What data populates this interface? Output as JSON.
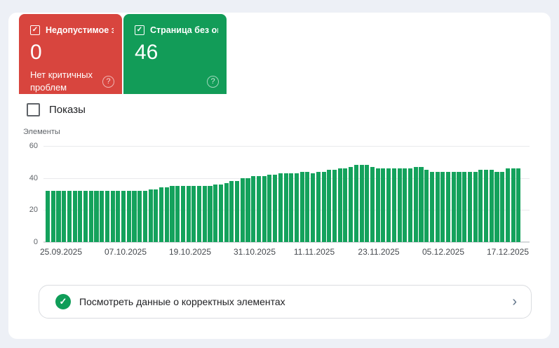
{
  "cards": [
    {
      "label": "Недопустимое з…",
      "value": "0",
      "sublabel": "Нет критичных проблем",
      "color": "#d8453e",
      "checked": true
    },
    {
      "label": "Страница без ош…",
      "value": "46",
      "sublabel": "",
      "color": "#129c58",
      "checked": true
    }
  ],
  "impressions_toggle": {
    "label": "Показы",
    "checked": false
  },
  "chart_data": {
    "type": "bar",
    "ylabel": "Элементы",
    "ylim": [
      0,
      60
    ],
    "yticks": [
      0,
      20,
      40,
      60
    ],
    "grid": true,
    "legend": "none",
    "bar_color": "#14a25c",
    "x_tick_labels": [
      "25.09.2025",
      "07.10.2025",
      "19.10.2025",
      "31.10.2025",
      "11.11.2025",
      "23.11.2025",
      "05.12.2025",
      "17.12.2025"
    ],
    "values": [
      32,
      32,
      32,
      32,
      32,
      32,
      32,
      32,
      32,
      32,
      32,
      32,
      32,
      32,
      32,
      32,
      32,
      32,
      32,
      33,
      33,
      34,
      34,
      35,
      35,
      35,
      35,
      35,
      35,
      35,
      35,
      36,
      36,
      37,
      38,
      38,
      40,
      40,
      41,
      41,
      41,
      42,
      42,
      43,
      43,
      43,
      43,
      44,
      44,
      43,
      44,
      44,
      45,
      45,
      46,
      46,
      47,
      48,
      48,
      48,
      47,
      46,
      46,
      46,
      46,
      46,
      46,
      46,
      47,
      47,
      45,
      44,
      44,
      44,
      44,
      44,
      44,
      44,
      44,
      44,
      45,
      45,
      45,
      44,
      44,
      46,
      46,
      46
    ]
  },
  "footer_link": {
    "label": "Посмотреть данные о корректных элементах"
  },
  "icons": {
    "help": "?",
    "chevron": "›",
    "check": "✓"
  }
}
